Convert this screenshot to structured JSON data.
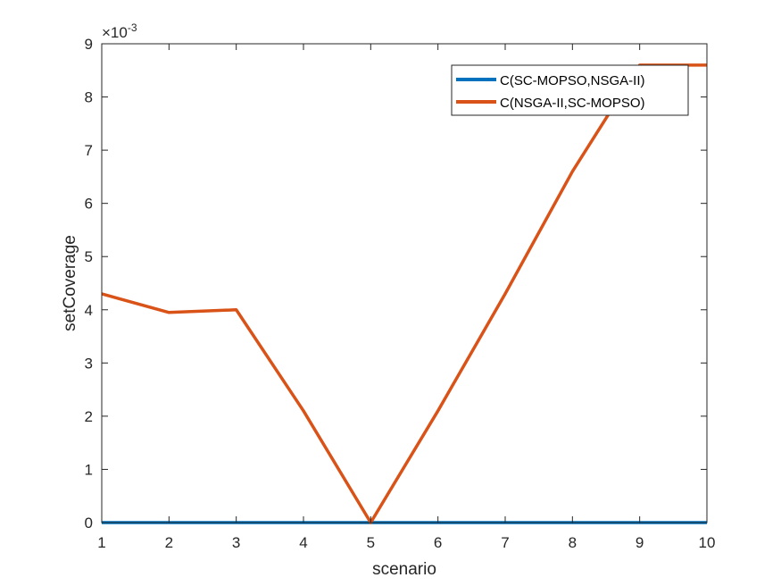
{
  "chart_data": {
    "type": "line",
    "xlabel": "scenario",
    "ylabel": "setCoverage",
    "y_exponent_label": "×10",
    "y_exponent_power": "-3",
    "x": [
      1,
      2,
      3,
      4,
      5,
      6,
      7,
      8,
      9,
      10
    ],
    "xlim": [
      1,
      10
    ],
    "ylim": [
      0,
      0.009
    ],
    "x_ticks": [
      "1",
      "2",
      "3",
      "4",
      "5",
      "6",
      "7",
      "8",
      "9",
      "10"
    ],
    "y_ticks": [
      "0",
      "1",
      "2",
      "3",
      "4",
      "5",
      "6",
      "7",
      "8",
      "9"
    ],
    "grid": false,
    "legend_position": "top-right",
    "series": [
      {
        "name": "C(SC-MOPSO,NSGA-II)",
        "color": "#0072BD",
        "values": [
          0,
          0,
          0,
          0,
          0,
          0,
          0,
          0,
          0,
          0
        ]
      },
      {
        "name": "C(NSGA-II,SC-MOPSO)",
        "color": "#D95319",
        "values": [
          0.0043,
          0.00395,
          0.004,
          0.0021,
          0,
          0.0021,
          0.0043,
          0.0066,
          0.0086,
          0.0086
        ]
      }
    ]
  }
}
